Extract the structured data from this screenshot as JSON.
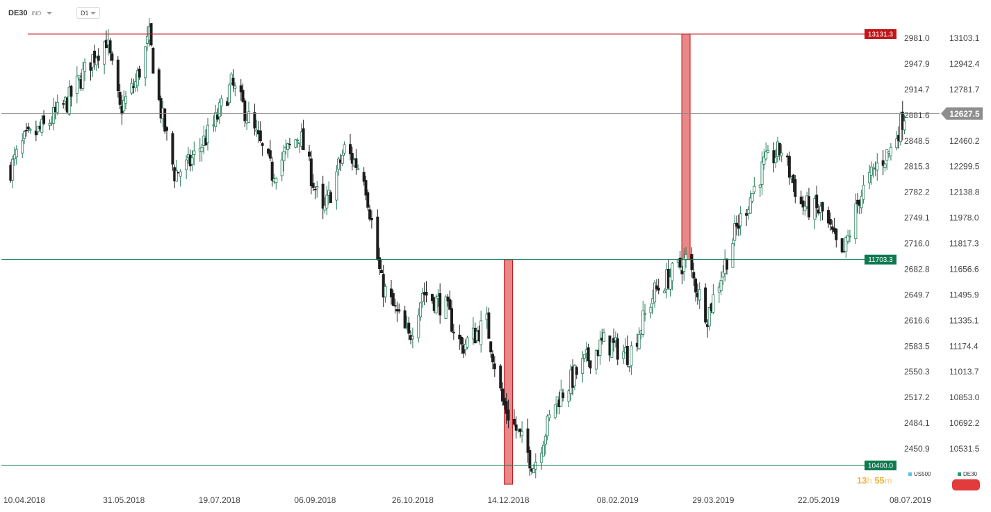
{
  "header": {
    "symbol": "DE30",
    "source": "IND",
    "timeframe": "D1"
  },
  "chart_data": {
    "type": "candlestick",
    "xlabels": [
      "10.04.2018",
      "31.05.2018",
      "19.07.2018",
      "06.09.2018",
      "26.10.2018",
      "14.12.2018",
      "08.02.2019",
      "29.03.2019",
      "22.05.2019",
      "08.07.2019"
    ],
    "left_axis_ticks": [
      "2981.0",
      "2947.9",
      "2914.7",
      "2881.6",
      "2848.5",
      "2815.3",
      "2782.2",
      "2749.1",
      "2716.0",
      "2682.8",
      "2649.7",
      "2616.6",
      "2583.5",
      "2550.3",
      "2517.2",
      "2484.1",
      "2450.9"
    ],
    "right_axis_ticks": [
      "13103.1",
      "12942.4",
      "12781.7",
      "12627.5",
      "12460.2",
      "12299.5",
      "12138.8",
      "11978.0",
      "11817.3",
      "11656.6",
      "11495.9",
      "11335.1",
      "11174.4",
      "11013.7",
      "10853.0",
      "10692.2",
      "10531.5"
    ],
    "ylim": [
      10400.0,
      13131.3
    ],
    "current_price": "12627.5",
    "levels": [
      {
        "label": "13131.3",
        "value": 13131.3,
        "color": "#c0161b"
      },
      {
        "label": "11703.3",
        "value": 11703.3,
        "color": "#0d7a52"
      },
      {
        "label": "10400.0",
        "value": 10400.0,
        "color": "#0d7a52"
      }
    ],
    "highlight_boxes": [
      {
        "from_date": "14.12.2018",
        "low": 10281,
        "high": 11703.3,
        "color": "#e57373"
      },
      {
        "from_date": "15.03.2019",
        "low": 11703.3,
        "high": 13131.3,
        "color": "#e57373"
      }
    ],
    "path_anchors": [
      {
        "date": "03.04.2018",
        "close": 12280
      },
      {
        "date": "10.04.2018",
        "close": 12450
      },
      {
        "date": "20.04.2018",
        "close": 12540
      },
      {
        "date": "02.05.2018",
        "close": 12700
      },
      {
        "date": "15.05.2018",
        "close": 12980
      },
      {
        "date": "22.05.2018",
        "close": 13100
      },
      {
        "date": "29.05.2018",
        "close": 12650
      },
      {
        "date": "06.06.2018",
        "close": 12820
      },
      {
        "date": "13.06.2018",
        "close": 13110
      },
      {
        "date": "18.06.2018",
        "close": 12700
      },
      {
        "date": "26.06.2018",
        "close": 12250
      },
      {
        "date": "03.07.2018",
        "close": 12300
      },
      {
        "date": "16.07.2018",
        "close": 12550
      },
      {
        "date": "25.07.2018",
        "close": 12810
      },
      {
        "date": "01.08.2018",
        "close": 12650
      },
      {
        "date": "15.08.2018",
        "close": 12250
      },
      {
        "date": "29.08.2018",
        "close": 12500
      },
      {
        "date": "10.09.2018",
        "close": 11980
      },
      {
        "date": "21.09.2018",
        "close": 12400
      },
      {
        "date": "01.10.2018",
        "close": 12250
      },
      {
        "date": "10.10.2018",
        "close": 11550
      },
      {
        "date": "24.10.2018",
        "close": 11200
      },
      {
        "date": "31.10.2018",
        "close": 11500
      },
      {
        "date": "12.11.2018",
        "close": 11400
      },
      {
        "date": "20.11.2018",
        "close": 11150
      },
      {
        "date": "03.12.2018",
        "close": 11300
      },
      {
        "date": "11.12.2018",
        "close": 10800
      },
      {
        "date": "27.12.2018",
        "close": 10400
      },
      {
        "date": "07.01.2019",
        "close": 10800
      },
      {
        "date": "22.01.2019",
        "close": 11050
      },
      {
        "date": "01.02.2019",
        "close": 11180
      },
      {
        "date": "14.02.2019",
        "close": 11100
      },
      {
        "date": "27.02.2019",
        "close": 11500
      },
      {
        "date": "15.03.2019",
        "close": 11700
      },
      {
        "date": "26.03.2019",
        "close": 11350
      },
      {
        "date": "10.04.2019",
        "close": 11900
      },
      {
        "date": "24.04.2019",
        "close": 12300
      },
      {
        "date": "03.05.2019",
        "close": 12400
      },
      {
        "date": "13.05.2019",
        "close": 12050
      },
      {
        "date": "24.05.2019",
        "close": 12000
      },
      {
        "date": "03.06.2019",
        "close": 11700
      },
      {
        "date": "12.06.2019",
        "close": 12100
      },
      {
        "date": "21.06.2019",
        "close": 12300
      },
      {
        "date": "28.06.2019",
        "close": 12400
      },
      {
        "date": "05.07.2019",
        "close": 12627.5
      }
    ],
    "legend": [
      {
        "name": "US500",
        "color": "#5bc0eb"
      },
      {
        "name": "DE30",
        "color": "#1f9d6b"
      }
    ],
    "colors": {
      "up": "#1f7a55",
      "down": "#1d1d1d",
      "price_tag": "#8e8e8e"
    }
  },
  "timer": {
    "hours": "13",
    "h_unit": "h",
    "minutes": "55",
    "m_unit": "m"
  }
}
